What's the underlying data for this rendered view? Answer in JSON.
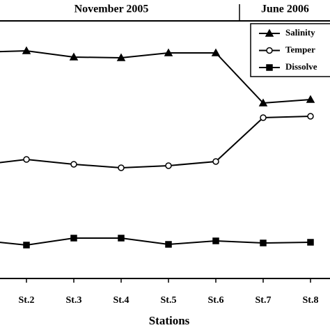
{
  "chart_data": {
    "type": "line",
    "annotations": [
      "November 2005",
      "June 2006"
    ],
    "x_label": "Stations",
    "categories": [
      null,
      "St.2",
      "St.3",
      "St.4",
      "St.5",
      "St.6",
      "St.7",
      "St.8"
    ],
    "series": [
      {
        "name": "Salinity",
        "color": "#000000",
        "marker": "triangle",
        "values": [
          325,
          327,
          318,
          317,
          324,
          324,
          252,
          257
        ]
      },
      {
        "name": "Temper",
        "color": "#000000",
        "marker": "circle",
        "values": [
          163,
          171,
          164,
          159,
          162,
          168,
          231,
          233
        ]
      },
      {
        "name": "Dissolve",
        "color": "#000000",
        "marker": "square",
        "values": [
          55,
          48,
          58,
          58,
          49,
          54,
          51,
          52
        ]
      }
    ],
    "ylim": [
      0,
      370
    ]
  }
}
